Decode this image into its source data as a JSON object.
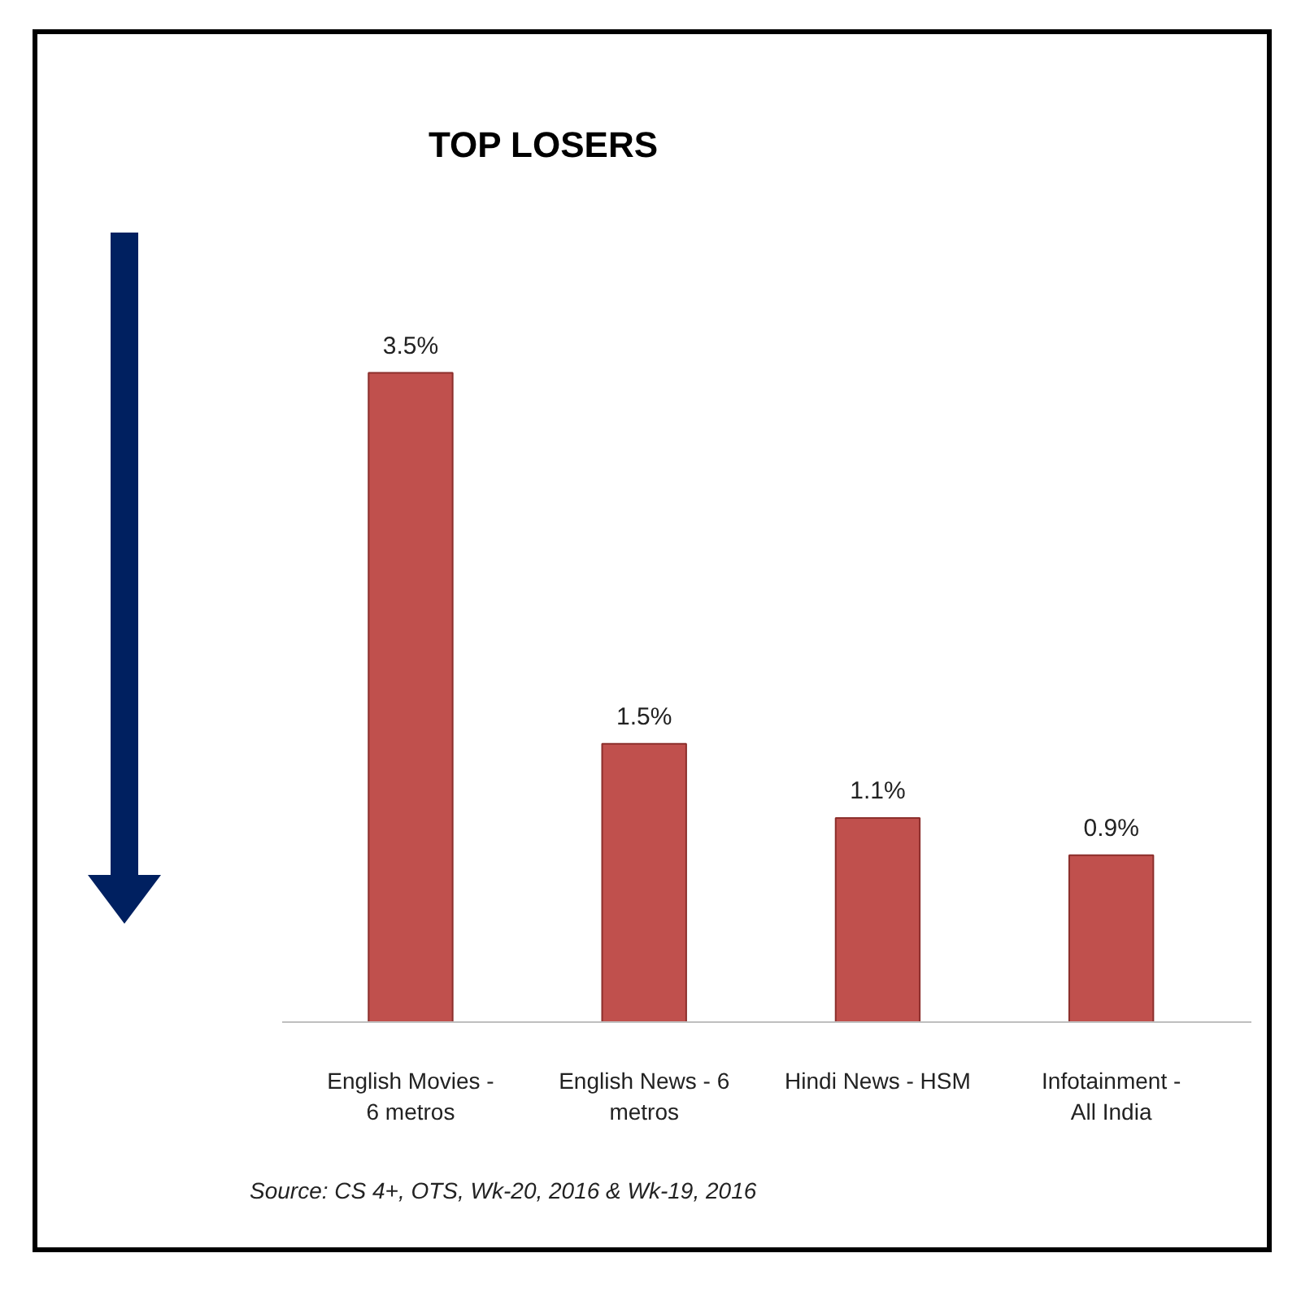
{
  "chart_data": {
    "type": "bar",
    "title": "TOP LOSERS",
    "categories": [
      "English Movies - 6 metros",
      "English News - 6 metros",
      "Hindi News - HSM",
      "Infotainment - All India"
    ],
    "values": [
      3.5,
      1.5,
      1.1,
      0.9
    ],
    "color": "#c0504d",
    "value_labels": [
      "3.5%",
      "1.5%",
      "1.1%",
      "0.9%"
    ],
    "tick_labels": "x",
    "annotations": [
      "Source: CS 4+,  OTS, Wk-20, 2016 & Wk-19, 2016"
    ]
  }
}
